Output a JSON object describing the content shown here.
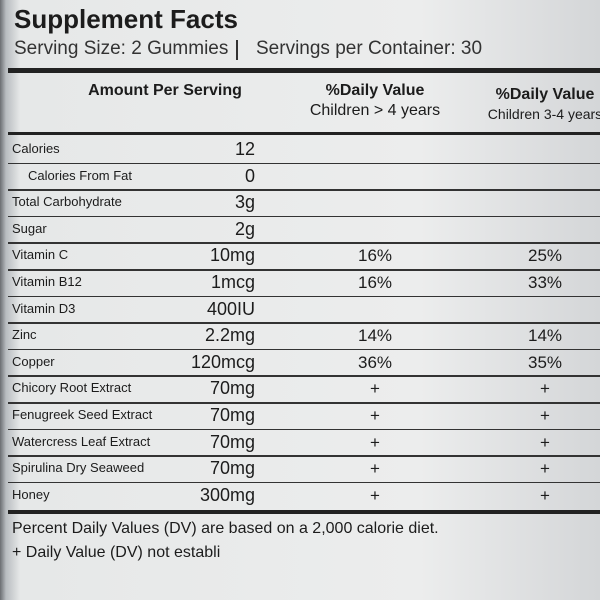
{
  "header": {
    "title": "Supplement Facts",
    "serving_size": "Serving Size: 2 Gummies",
    "servings_per_container": "Servings per Container: 30"
  },
  "columns": {
    "amount": "Amount Per Serving",
    "dv_over_4": {
      "title": "%Daily Value",
      "subtitle": "Children > 4 years"
    },
    "dv_3_4": {
      "title": "%Daily Value",
      "subtitle": "Children 3-4 years"
    }
  },
  "rows": [
    {
      "name": "Calories",
      "amount": "12"
    },
    {
      "name": "Calories From Fat",
      "amount": "0"
    },
    {
      "name": "Total Carbohydrate",
      "amount": "3g"
    },
    {
      "name": "Sugar",
      "amount": "2g"
    },
    {
      "name": "Vitamin C",
      "amount": "10mg",
      "dv_over_4": "16%",
      "dv_3_4": "25%"
    },
    {
      "name": "Vitamin B12",
      "amount": "1mcg",
      "dv_over_4": "16%",
      "dv_3_4": "33%"
    },
    {
      "name": "Vitamin D3",
      "amount": "400IU"
    },
    {
      "name": "Zinc",
      "amount": "2.2mg",
      "dv_over_4": "14%",
      "dv_3_4": "14%"
    },
    {
      "name": "Copper",
      "amount": "120mcg",
      "dv_over_4": "36%",
      "dv_3_4": "35%"
    },
    {
      "name": "Chicory Root Extract",
      "amount": "70mg",
      "dv_over_4": "+",
      "dv_3_4": "+"
    },
    {
      "name": "Fenugreek Seed Extract",
      "amount": "70mg",
      "dv_over_4": "+",
      "dv_3_4": "+"
    },
    {
      "name": "Watercress Leaf Extract",
      "amount": "70mg",
      "dv_over_4": "+",
      "dv_3_4": "+"
    },
    {
      "name": "Spirulina Dry Seaweed",
      "amount": "70mg",
      "dv_over_4": "+",
      "dv_3_4": "+"
    },
    {
      "name": "Honey",
      "amount": "300mg",
      "dv_over_4": "+",
      "dv_3_4": "+"
    }
  ],
  "footnotes": [
    "Percent Daily Values (DV) are based on a 2,000 calorie diet.",
    "+ Daily Value (DV) not establi"
  ]
}
